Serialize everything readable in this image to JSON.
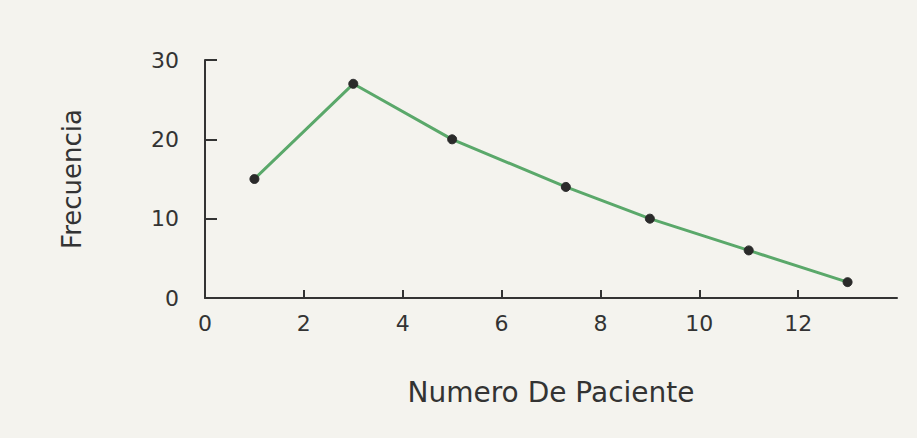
{
  "chart_data": {
    "type": "line",
    "x_label": "Numero De Paciente",
    "y_label": "Frecuencia",
    "x": [
      1,
      3,
      5,
      7.3,
      9,
      11,
      13
    ],
    "values": [
      15,
      27,
      20,
      14,
      10,
      6,
      2
    ],
    "color": "#5aa86a",
    "marker": "circle",
    "xlim": [
      0,
      14
    ],
    "xticks": [
      0,
      2,
      4,
      6,
      8,
      10,
      12
    ],
    "ylim": [
      0,
      30
    ],
    "yticks": [
      0,
      10,
      20,
      30
    ],
    "grid": false
  }
}
